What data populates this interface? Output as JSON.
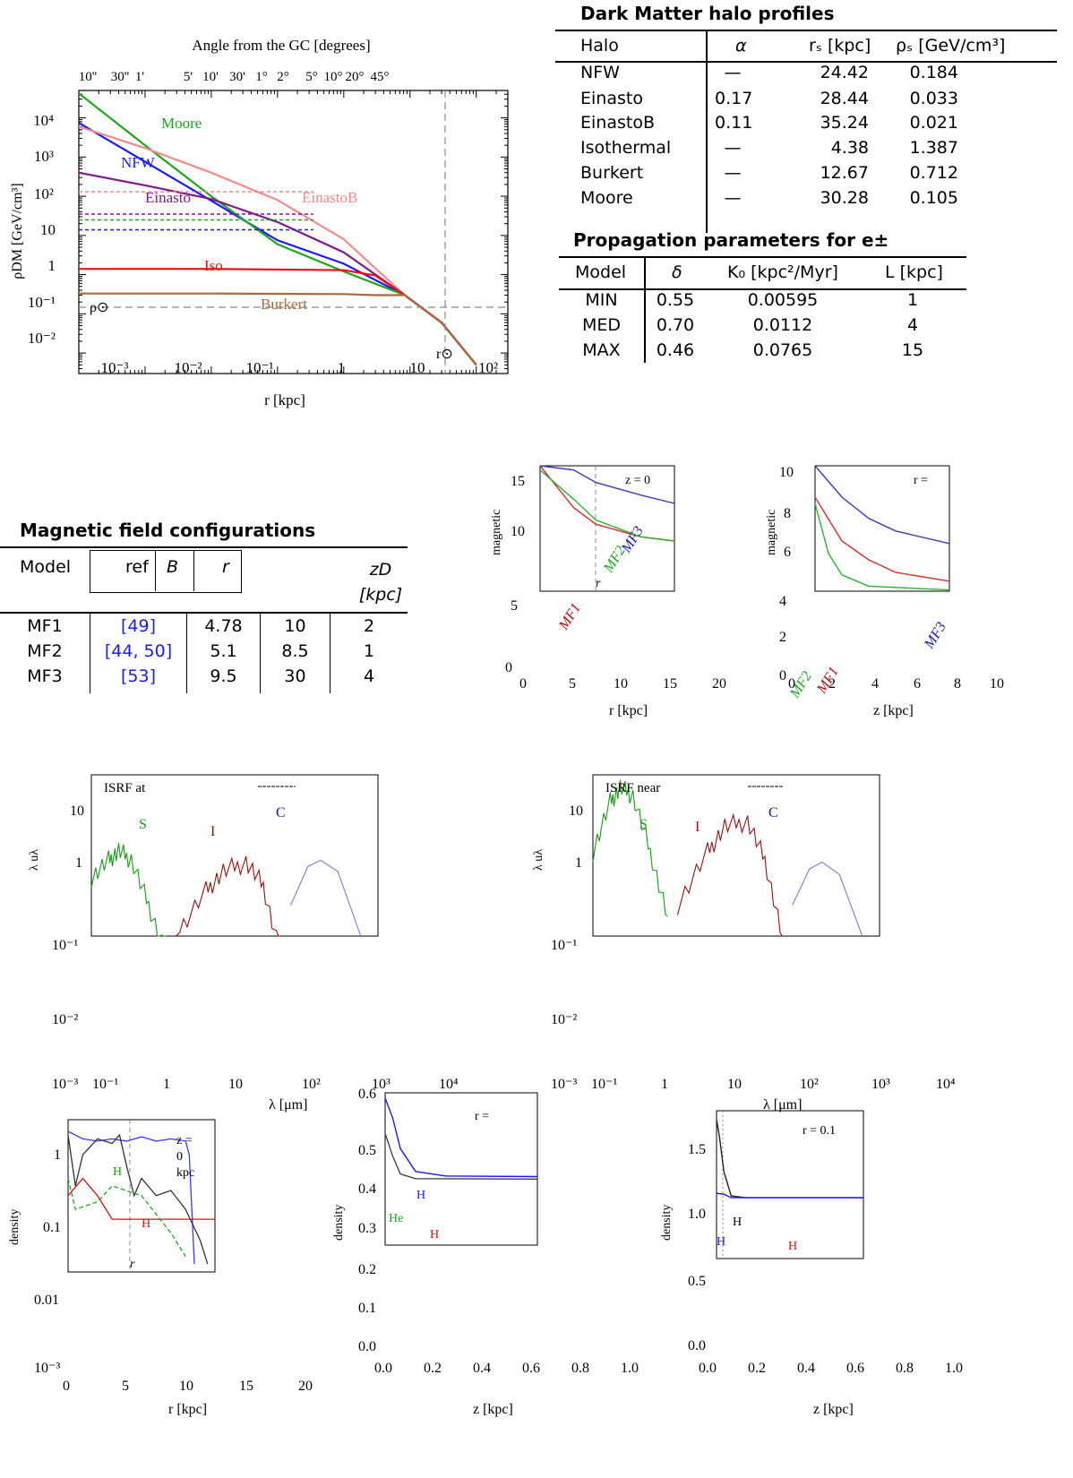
{
  "density_profile_chart": {
    "top_axis_label": "Angle from the GC [degrees]",
    "top_ticks": [
      "10''",
      "30''",
      "1'",
      "5'",
      "10'",
      "30'",
      "1°",
      "2°",
      "5°",
      "10°",
      "20°",
      "45°"
    ],
    "y_ticks": [
      "10⁴",
      "10³",
      "10²",
      "10",
      "1",
      "10⁻¹",
      "10⁻²"
    ],
    "x_ticks": [
      "10⁻³",
      "10⁻²",
      "10⁻¹",
      "1",
      "10",
      "10²"
    ],
    "x_label": "r [kpc]",
    "y_label": "ρDM [GeV/cm³]",
    "rho_sun_label": "ρ⊙",
    "r_sun_label": "r⊙",
    "curve_labels": {
      "moore": "Moore",
      "nfw": "NFW",
      "einasto": "Einasto",
      "einastob": "EinastoB",
      "iso": "Iso",
      "burkert": "Burkert"
    },
    "colors": {
      "moore": "#1fa51f",
      "nfw": "#1a1aff",
      "einasto": "#7d1a8c",
      "einastob": "#f58a8a",
      "iso": "#ee1111",
      "burkert": "#a66a3c"
    }
  },
  "chart_data": [
    {
      "type": "line",
      "title": "",
      "xlabel": "r [kpc]",
      "ylabel": "ρDM [GeV/cm³]",
      "xscale": "log",
      "yscale": "log",
      "xlim": [
        0.0001,
        300
      ],
      "ylim": [
        0.003,
        50000
      ],
      "series": [
        {
          "name": "NFW",
          "x": [
            0.0001,
            0.001,
            0.01,
            0.1,
            1,
            8.33,
            30,
            100
          ],
          "y": [
            7500,
            760,
            77,
            7.5,
            1.9,
            0.3,
            0.06,
            0.005
          ]
        },
        {
          "name": "Moore",
          "x": [
            0.0001,
            0.001,
            0.01,
            0.1,
            1,
            8.33,
            30,
            100
          ],
          "y": [
            42000,
            2000,
            100,
            6,
            1.2,
            0.3,
            0.06,
            0.005
          ]
        },
        {
          "name": "EinastoB",
          "x": [
            0.0001,
            0.001,
            0.01,
            0.1,
            1,
            8.33,
            30,
            100
          ],
          "y": [
            6000,
            1700,
            400,
            80,
            8,
            0.3,
            0.06,
            0.005
          ]
        },
        {
          "name": "Einasto",
          "x": [
            0.0001,
            0.001,
            0.01,
            0.1,
            1,
            8.33,
            30,
            100
          ],
          "y": [
            400,
            190,
            85,
            22,
            3.7,
            0.3,
            0.06,
            0.005
          ]
        },
        {
          "name": "Iso",
          "x": [
            0.0001,
            0.01,
            1,
            3,
            8.33,
            30,
            100
          ],
          "y": [
            1.4,
            1.4,
            1.3,
            0.95,
            0.3,
            0.06,
            0.005
          ]
        },
        {
          "name": "Burkert",
          "x": [
            0.0001,
            0.01,
            1,
            3,
            8.33,
            30,
            100
          ],
          "y": [
            0.33,
            0.33,
            0.32,
            0.3,
            0.3,
            0.06,
            0.005
          ]
        }
      ]
    },
    {
      "type": "line",
      "title": "z = 0",
      "xlabel": "r [kpc]",
      "ylabel": "magnetic",
      "xlim": [
        0,
        20
      ],
      "ylim": [
        0,
        15
      ],
      "series": [
        {
          "name": "MF1",
          "x": [
            0,
            5,
            8.33,
            15,
            20
          ],
          "y": [
            15,
            10,
            8,
            6.5,
            6
          ]
        },
        {
          "name": "MF2",
          "x": [
            0,
            5,
            8.33,
            15,
            20
          ],
          "y": [
            14.5,
            11,
            8.5,
            6.5,
            6
          ]
        },
        {
          "name": "MF3",
          "x": [
            0,
            5,
            8.33,
            15,
            20
          ],
          "y": [
            15,
            14.5,
            13,
            11.5,
            10.5
          ]
        }
      ]
    },
    {
      "type": "line",
      "title": "r =",
      "xlabel": "z [kpc]",
      "ylabel": "magnetic",
      "xlim": [
        0,
        10
      ],
      "ylim": [
        0,
        10
      ],
      "series": [
        {
          "name": "MF1",
          "x": [
            0,
            2,
            4,
            6,
            10
          ],
          "y": [
            7.5,
            4,
            2.5,
            1.5,
            0.8
          ]
        },
        {
          "name": "MF2",
          "x": [
            0,
            1,
            2,
            4,
            10
          ],
          "y": [
            7,
            3,
            1.3,
            0.4,
            0.1
          ]
        },
        {
          "name": "MF3",
          "x": [
            0,
            2,
            4,
            6,
            10
          ],
          "y": [
            10,
            7.5,
            5.8,
            4.8,
            3.8
          ]
        }
      ]
    },
    {
      "type": "line",
      "title": "ISRF at",
      "xlabel": "λ [μm]",
      "ylabel": "λ uλ",
      "xlim": [
        0.1,
        10000
      ],
      "ylim": [
        0.001,
        30
      ],
      "series": [
        {
          "name": "S",
          "x": [
            0.1,
            0.2,
            0.3,
            0.5,
            1,
            2
          ],
          "y": [
            0.8,
            1.5,
            2.1,
            1.5,
            0.3,
            0.05
          ]
        },
        {
          "name": "I",
          "x": [
            3,
            10,
            20,
            50,
            100,
            200
          ],
          "y": [
            0.1,
            0.5,
            1.0,
            1.4,
            0.6,
            0.05
          ]
        },
        {
          "name": "C",
          "x": [
            300,
            600,
            1000,
            2000,
            5000
          ],
          "y": [
            0.3,
            1.2,
            1.5,
            1.0,
            0.1
          ]
        }
      ]
    },
    {
      "type": "line",
      "title": "ISRF near",
      "xlabel": "λ [μm]",
      "ylabel": "λ uλ",
      "xlim": [
        0.1,
        10000
      ],
      "ylim": [
        0.001,
        30
      ],
      "series": [
        {
          "name": "S",
          "x": [
            0.1,
            0.2,
            0.3,
            0.5,
            1,
            2
          ],
          "y": [
            2,
            12,
            20,
            15,
            2,
            0.2
          ]
        },
        {
          "name": "I",
          "x": [
            3,
            10,
            20,
            50,
            100,
            200
          ],
          "y": [
            0.3,
            2,
            5,
            6,
            1.5,
            0.1
          ]
        },
        {
          "name": "C",
          "x": [
            300,
            600,
            1000,
            2000,
            5000
          ],
          "y": [
            0.3,
            1.1,
            1.4,
            0.9,
            0.1
          ]
        }
      ]
    },
    {
      "type": "line",
      "title": "z = 0 kpc",
      "xlabel": "r [kpc]",
      "ylabel": "density",
      "xlim": [
        0,
        20
      ],
      "ylim": [
        0.001,
        3
      ],
      "series": [
        {
          "name": "H",
          "x": [
            0,
            2,
            4,
            6,
            8.33,
            12,
            20
          ],
          "y": [
            0.3,
            0.5,
            0.3,
            0.15,
            0.15,
            0.15,
            0.15
          ]
        },
        {
          "name": "H₂",
          "x": [
            0,
            2,
            4,
            6,
            8.33,
            12,
            20
          ],
          "y": [
            0.5,
            0.2,
            0.25,
            0.4,
            0.3,
            0.1,
            0.01
          ]
        }
      ]
    },
    {
      "type": "line",
      "title": "r =",
      "xlabel": "z [kpc]",
      "ylabel": "density",
      "xlim": [
        0,
        1
      ],
      "ylim": [
        0,
        0.6
      ],
      "series": [
        {
          "name": "H",
          "x": [
            0,
            0.05,
            0.1,
            0.2,
            0.4,
            1.0
          ],
          "y": [
            0.58,
            0.5,
            0.38,
            0.29,
            0.272,
            0.27
          ]
        },
        {
          "name": "He",
          "x": [
            0,
            0.05,
            0.1,
            0.2,
            1.0
          ],
          "y": [
            0.44,
            0.35,
            0.28,
            0.262,
            0.26
          ]
        }
      ]
    },
    {
      "type": "line",
      "title": "r = 0.1",
      "xlabel": "z [kpc]",
      "ylabel": "density",
      "xlim": [
        0,
        1
      ],
      "ylim": [
        0,
        1.7
      ],
      "series": [
        {
          "name": "H",
          "x": [
            0,
            0.02,
            0.05,
            0.1,
            0.2,
            1.0
          ],
          "y": [
            1.6,
            1.4,
            1.0,
            0.72,
            0.7,
            0.7
          ]
        },
        {
          "name": "H (blue)",
          "x": [
            0,
            0.05,
            0.1,
            1.0
          ],
          "y": [
            0.75,
            0.74,
            0.7,
            0.7
          ]
        }
      ]
    }
  ],
  "dm_table": {
    "title": "Dark Matter halo profiles",
    "headers": [
      "Halo",
      "α",
      "rₛ [kpc]",
      "ρₛ [GeV/cm³]"
    ],
    "rows": [
      {
        "halo": "NFW",
        "alpha": "—",
        "rs": "24.42",
        "rhos": "0.184"
      },
      {
        "halo": "Einasto",
        "alpha": "0.17",
        "rs": "28.44",
        "rhos": "0.033"
      },
      {
        "halo": "EinastoB",
        "alpha": "0.11",
        "rs": "35.24",
        "rhos": "0.021"
      },
      {
        "halo": "Isothermal",
        "alpha": "—",
        "rs": "4.38",
        "rhos": "1.387"
      },
      {
        "halo": "Burkert",
        "alpha": "—",
        "rs": "12.67",
        "rhos": "0.712"
      },
      {
        "halo": "Moore",
        "alpha": "—",
        "rs": "30.28",
        "rhos": "0.105"
      }
    ]
  },
  "prop_table": {
    "title": "Propagation parameters for e±",
    "headers": [
      "Model",
      "δ",
      "K₀ [kpc²/Myr]",
      "L [kpc]"
    ],
    "rows": [
      {
        "model": "MIN",
        "delta": "0.55",
        "k0": "0.00595",
        "l": "1"
      },
      {
        "model": "MED",
        "delta": "0.70",
        "k0": "0.0112",
        "l": "4"
      },
      {
        "model": "MAX",
        "delta": "0.46",
        "k0": "0.0765",
        "l": "15"
      }
    ]
  },
  "mf_table": {
    "title": "Magnetic field configurations",
    "headers": [
      "Model",
      "ref",
      "B",
      "r",
      "zD [kpc]"
    ],
    "rows": [
      {
        "model": "MF1",
        "ref": "[49]",
        "b": "4.78",
        "r": "10",
        "zd": "2"
      },
      {
        "model": "MF2",
        "ref": "[44, 50]",
        "b": "5.1",
        "r": "8.5",
        "zd": "1"
      },
      {
        "model": "MF3",
        "ref": "[53]",
        "b": "9.5",
        "r": "30",
        "zd": "4"
      }
    ]
  },
  "mag_r_chart": {
    "title": "z = 0",
    "ylabel": "magnetic",
    "xlabel": "r [kpc]",
    "x_ticks": [
      "0",
      "5",
      "10",
      "15",
      "20"
    ],
    "y_ticks_in": [
      "15",
      "10"
    ],
    "y_ticks_out": [
      "5",
      "0"
    ],
    "r_label": "r",
    "labels": {
      "mf1": "MF1",
      "mf2": "MF2",
      "mf3": "MF3"
    }
  },
  "mag_z_chart": {
    "title": "r =",
    "ylabel": "magnetic",
    "xlabel": "z [kpc]",
    "x_ticks": [
      "0",
      "2",
      "4",
      "6",
      "8",
      "10"
    ],
    "y_ticks_in": [
      "10",
      "8",
      "6"
    ],
    "y_ticks_out": [
      "4",
      "2",
      "0"
    ],
    "labels": {
      "mf1": "MF1",
      "mf2": "MF2",
      "mf3": "MF3"
    }
  },
  "isrf_left": {
    "title": "ISRF at",
    "ylabel": "λ uλ",
    "xlabel": "λ [μm]",
    "y_ticks_in": [
      "10",
      "1"
    ],
    "y_ticks_out": [
      "10⁻¹",
      "10⁻²",
      "10⁻³"
    ],
    "x_ticks": [
      "10⁻¹",
      "1",
      "10",
      "10²",
      "10³",
      "10⁴"
    ],
    "labels": {
      "s": "S",
      "i": "I",
      "c": "C"
    }
  },
  "isrf_right": {
    "title": "ISRF near",
    "ylabel": "λ uλ",
    "xlabel": "λ [μm]",
    "y_ticks_in": [
      "10",
      "1"
    ],
    "y_ticks_out": [
      "10⁻¹",
      "10⁻²",
      "10⁻³"
    ],
    "x_ticks": [
      "10⁻¹",
      "1",
      "10",
      "10²",
      "10³",
      "10⁴"
    ],
    "labels": {
      "s": "S",
      "i": "I",
      "c": "C"
    }
  },
  "gas_r_chart": {
    "title_lines": [
      "z =",
      "0",
      "kpc"
    ],
    "ylabel": "density",
    "xlabel": "r [kpc]",
    "y_ticks_in": [
      "1",
      "0.1"
    ],
    "y_ticks_out": [
      "0.01",
      "10⁻³"
    ],
    "x_ticks": [
      "0",
      "5",
      "10",
      "15",
      "20"
    ],
    "r_label": "r",
    "labels": {
      "h2": "H",
      "h": "H"
    }
  },
  "gas_z1_chart": {
    "title": "r =",
    "ylabel": "density",
    "xlabel": "z [kpc]",
    "y_ticks_in": [
      "0.6",
      "0.5",
      "0.4",
      "0.3"
    ],
    "y_ticks_out": [
      "0.2",
      "0.1",
      "0.0"
    ],
    "x_ticks": [
      "0.0",
      "0.2",
      "0.4",
      "0.6",
      "0.8",
      "1.0"
    ],
    "labels": {
      "h": "H",
      "he": "He",
      "hred": "H"
    }
  },
  "gas_z2_chart": {
    "title": "r = 0.1",
    "ylabel": "density",
    "xlabel": "z [kpc]",
    "y_ticks_in": [
      "1.5",
      "1.0"
    ],
    "y_ticks_out": [
      "0.5",
      "0.0"
    ],
    "x_ticks": [
      "0.0",
      "0.2",
      "0.4",
      "0.6",
      "0.8",
      "1.0"
    ],
    "labels": {
      "hblack": "H",
      "hblue": "H",
      "hred": "H"
    }
  }
}
